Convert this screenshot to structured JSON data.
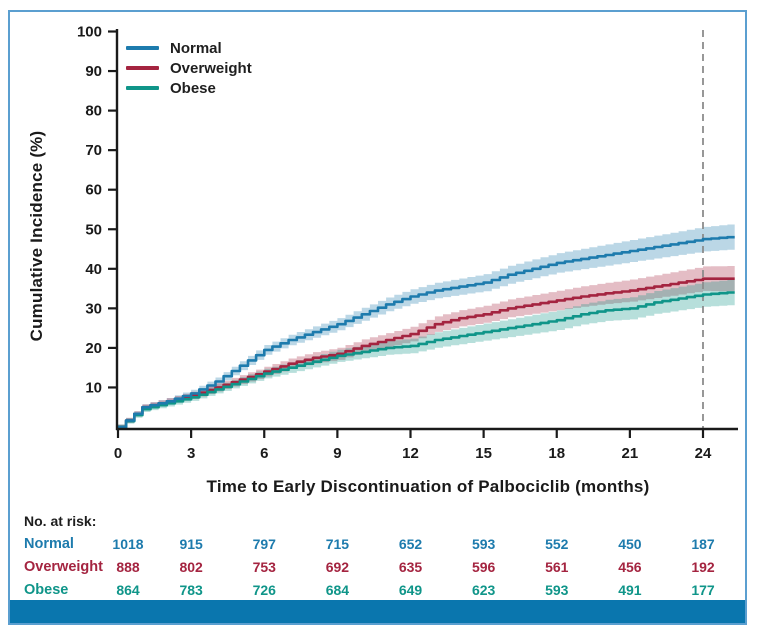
{
  "figure": {
    "border_color": "#5b9fd0",
    "bottom_bar_color": "#0a76ae"
  },
  "chart_data": {
    "type": "line",
    "subtype": "cumulative-incidence-step-curves-with-confidence-bands",
    "title": "",
    "xlabel": "Time to Early Discontinuation of Palbociclib (months)",
    "ylabel": "Cumulative Incidence (%)",
    "xlim": [
      0,
      25.3
    ],
    "ylim": [
      0,
      100
    ],
    "x_ticks": [
      0,
      3,
      6,
      9,
      12,
      15,
      18,
      21,
      24
    ],
    "y_ticks": [
      10,
      20,
      30,
      40,
      50,
      60,
      70,
      80,
      90,
      100
    ],
    "reference_line_x": 24,
    "reference_line_style": "dashed-gray",
    "legend_position": "top-left",
    "grid": "off",
    "x": [
      0,
      1,
      2,
      3,
      4,
      5,
      6,
      7,
      8,
      9,
      10,
      11,
      12,
      13,
      14,
      15,
      16,
      17,
      18,
      19,
      20,
      21,
      22,
      23,
      24,
      25
    ],
    "series": [
      {
        "name": "Normal",
        "color": "#1d7bad",
        "values": [
          0,
          5,
          6.5,
          8.5,
          11.5,
          15.5,
          19.5,
          22,
          24,
          26,
          28.5,
          31,
          33,
          34.5,
          35.5,
          36.5,
          38.5,
          40,
          41.5,
          42.5,
          43.5,
          44.5,
          45.5,
          46.5,
          47.5,
          48
        ]
      },
      {
        "name": "Overweight",
        "color": "#a42440",
        "values": [
          0,
          5,
          6.5,
          8,
          10,
          12,
          14,
          16,
          17.5,
          18.5,
          20.5,
          22,
          23.5,
          26,
          27.5,
          28.5,
          30,
          31,
          32,
          33,
          33.8,
          34.5,
          35.5,
          36.5,
          37.5,
          37.5
        ]
      },
      {
        "name": "Obese",
        "color": "#0f9589",
        "values": [
          0,
          4.5,
          6,
          7.5,
          9.5,
          11.5,
          13.5,
          15,
          16.5,
          18,
          19,
          20,
          20.5,
          22,
          23,
          24,
          25,
          26,
          27,
          28.5,
          29.5,
          30,
          31.5,
          32.5,
          33.5,
          34
        ]
      }
    ],
    "ci_halfwidth": {
      "start": 0.6,
      "end": 3.2
    }
  },
  "at_risk": {
    "title": "No. at risk:",
    "time_points": [
      0,
      3,
      6,
      9,
      12,
      15,
      18,
      21,
      24
    ],
    "rows": [
      {
        "name": "Normal",
        "color": "#1d7bad",
        "counts": [
          1018,
          915,
          797,
          715,
          652,
          593,
          552,
          450,
          187
        ]
      },
      {
        "name": "Overweight",
        "color": "#a42440",
        "counts": [
          888,
          802,
          753,
          692,
          635,
          596,
          561,
          456,
          192
        ]
      },
      {
        "name": "Obese",
        "color": "#0f9589",
        "counts": [
          864,
          783,
          726,
          684,
          649,
          623,
          593,
          491,
          177
        ]
      }
    ]
  }
}
